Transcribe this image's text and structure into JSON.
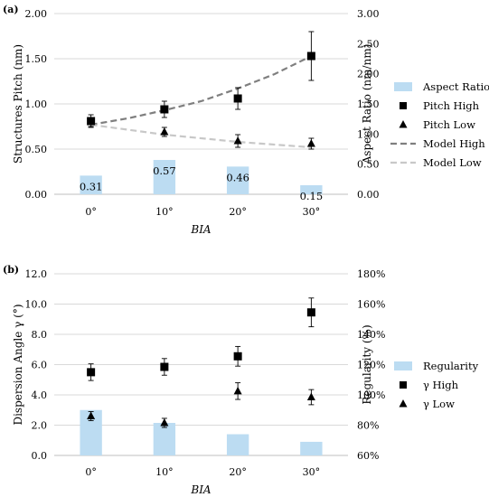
{
  "chart_data": [
    {
      "type": "bar",
      "panel_label": "(a)",
      "categories": [
        "0°",
        "10°",
        "20°",
        "30°"
      ],
      "xlabel": "BIA",
      "ylabel": "Structures Pitch (nm)",
      "y2label": "Aspect Ratio (nm/nm)",
      "ylim": [
        0,
        2.0
      ],
      "y2lim": [
        0,
        3.0
      ],
      "yticks": [
        "0.00",
        "0.50",
        "1.00",
        "1.50",
        "2.00"
      ],
      "y2ticks": [
        "0.00",
        "0.50",
        "1.00",
        "1.50",
        "2.00",
        "2.50",
        "3.00"
      ],
      "bars": {
        "name": "Aspect Ratio",
        "axis": "y2",
        "color": "#bcdcf2",
        "values": [
          0.31,
          0.57,
          0.46,
          0.15
        ],
        "labels": [
          "0.31",
          "0.57",
          "0.46",
          "0.15"
        ]
      },
      "series": [
        {
          "name": "Pitch High",
          "marker": "square",
          "values": [
            0.81,
            0.94,
            1.06,
            1.53
          ],
          "err": [
            0.07,
            0.09,
            0.12,
            0.27
          ]
        },
        {
          "name": "Pitch Low",
          "marker": "triangle",
          "values": [
            0.8,
            0.69,
            0.59,
            0.56
          ],
          "err": [
            0.05,
            0.05,
            0.07,
            0.06
          ]
        }
      ],
      "lines": [
        {
          "name": "Model High",
          "color": "#7f7f7f",
          "x": [
            0,
            0.5,
            1,
            1.5,
            2,
            2.5,
            3
          ],
          "values": [
            0.77,
            0.84,
            0.93,
            1.03,
            1.17,
            1.33,
            1.53
          ]
        },
        {
          "name": "Model Low",
          "color": "#c8c8c8",
          "x": [
            0,
            1,
            2,
            3
          ],
          "values": [
            0.77,
            0.66,
            0.58,
            0.52
          ]
        }
      ],
      "legend": [
        "Aspect Ratio",
        "Pitch High",
        "Pitch Low",
        "Model High",
        "Model Low"
      ],
      "legend_position": "right"
    },
    {
      "type": "bar",
      "panel_label": "(b)",
      "categories": [
        "0°",
        "10°",
        "20°",
        "30°"
      ],
      "xlabel": "BIA",
      "ylabel": "Dispersion Angle γ (°)",
      "y2label": "Regularity (%)",
      "ylim": [
        0,
        12.0
      ],
      "y2lim": [
        60,
        180
      ],
      "yticks": [
        "0.0",
        "2.0",
        "4.0",
        "6.0",
        "8.0",
        "10.0",
        "12.0"
      ],
      "y2ticks": [
        "60%",
        "80%",
        "100%",
        "120%",
        "140%",
        "160%",
        "180%"
      ],
      "bars": {
        "name": "Regularity",
        "axis": "y2",
        "color": "#bcdcf2",
        "values": [
          90,
          81.5,
          74,
          69
        ]
      },
      "series": [
        {
          "name": "γ High",
          "marker": "square",
          "values": [
            5.5,
            5.85,
            6.55,
            9.45
          ],
          "err": [
            0.55,
            0.55,
            0.65,
            0.95
          ]
        },
        {
          "name": "γ Low",
          "marker": "triangle",
          "values": [
            2.6,
            2.15,
            4.25,
            3.85
          ],
          "err": [
            0.3,
            0.3,
            0.55,
            0.5
          ]
        }
      ],
      "legend": [
        "Regularity",
        "γ High",
        "γ Low"
      ],
      "legend_position": "right"
    }
  ]
}
